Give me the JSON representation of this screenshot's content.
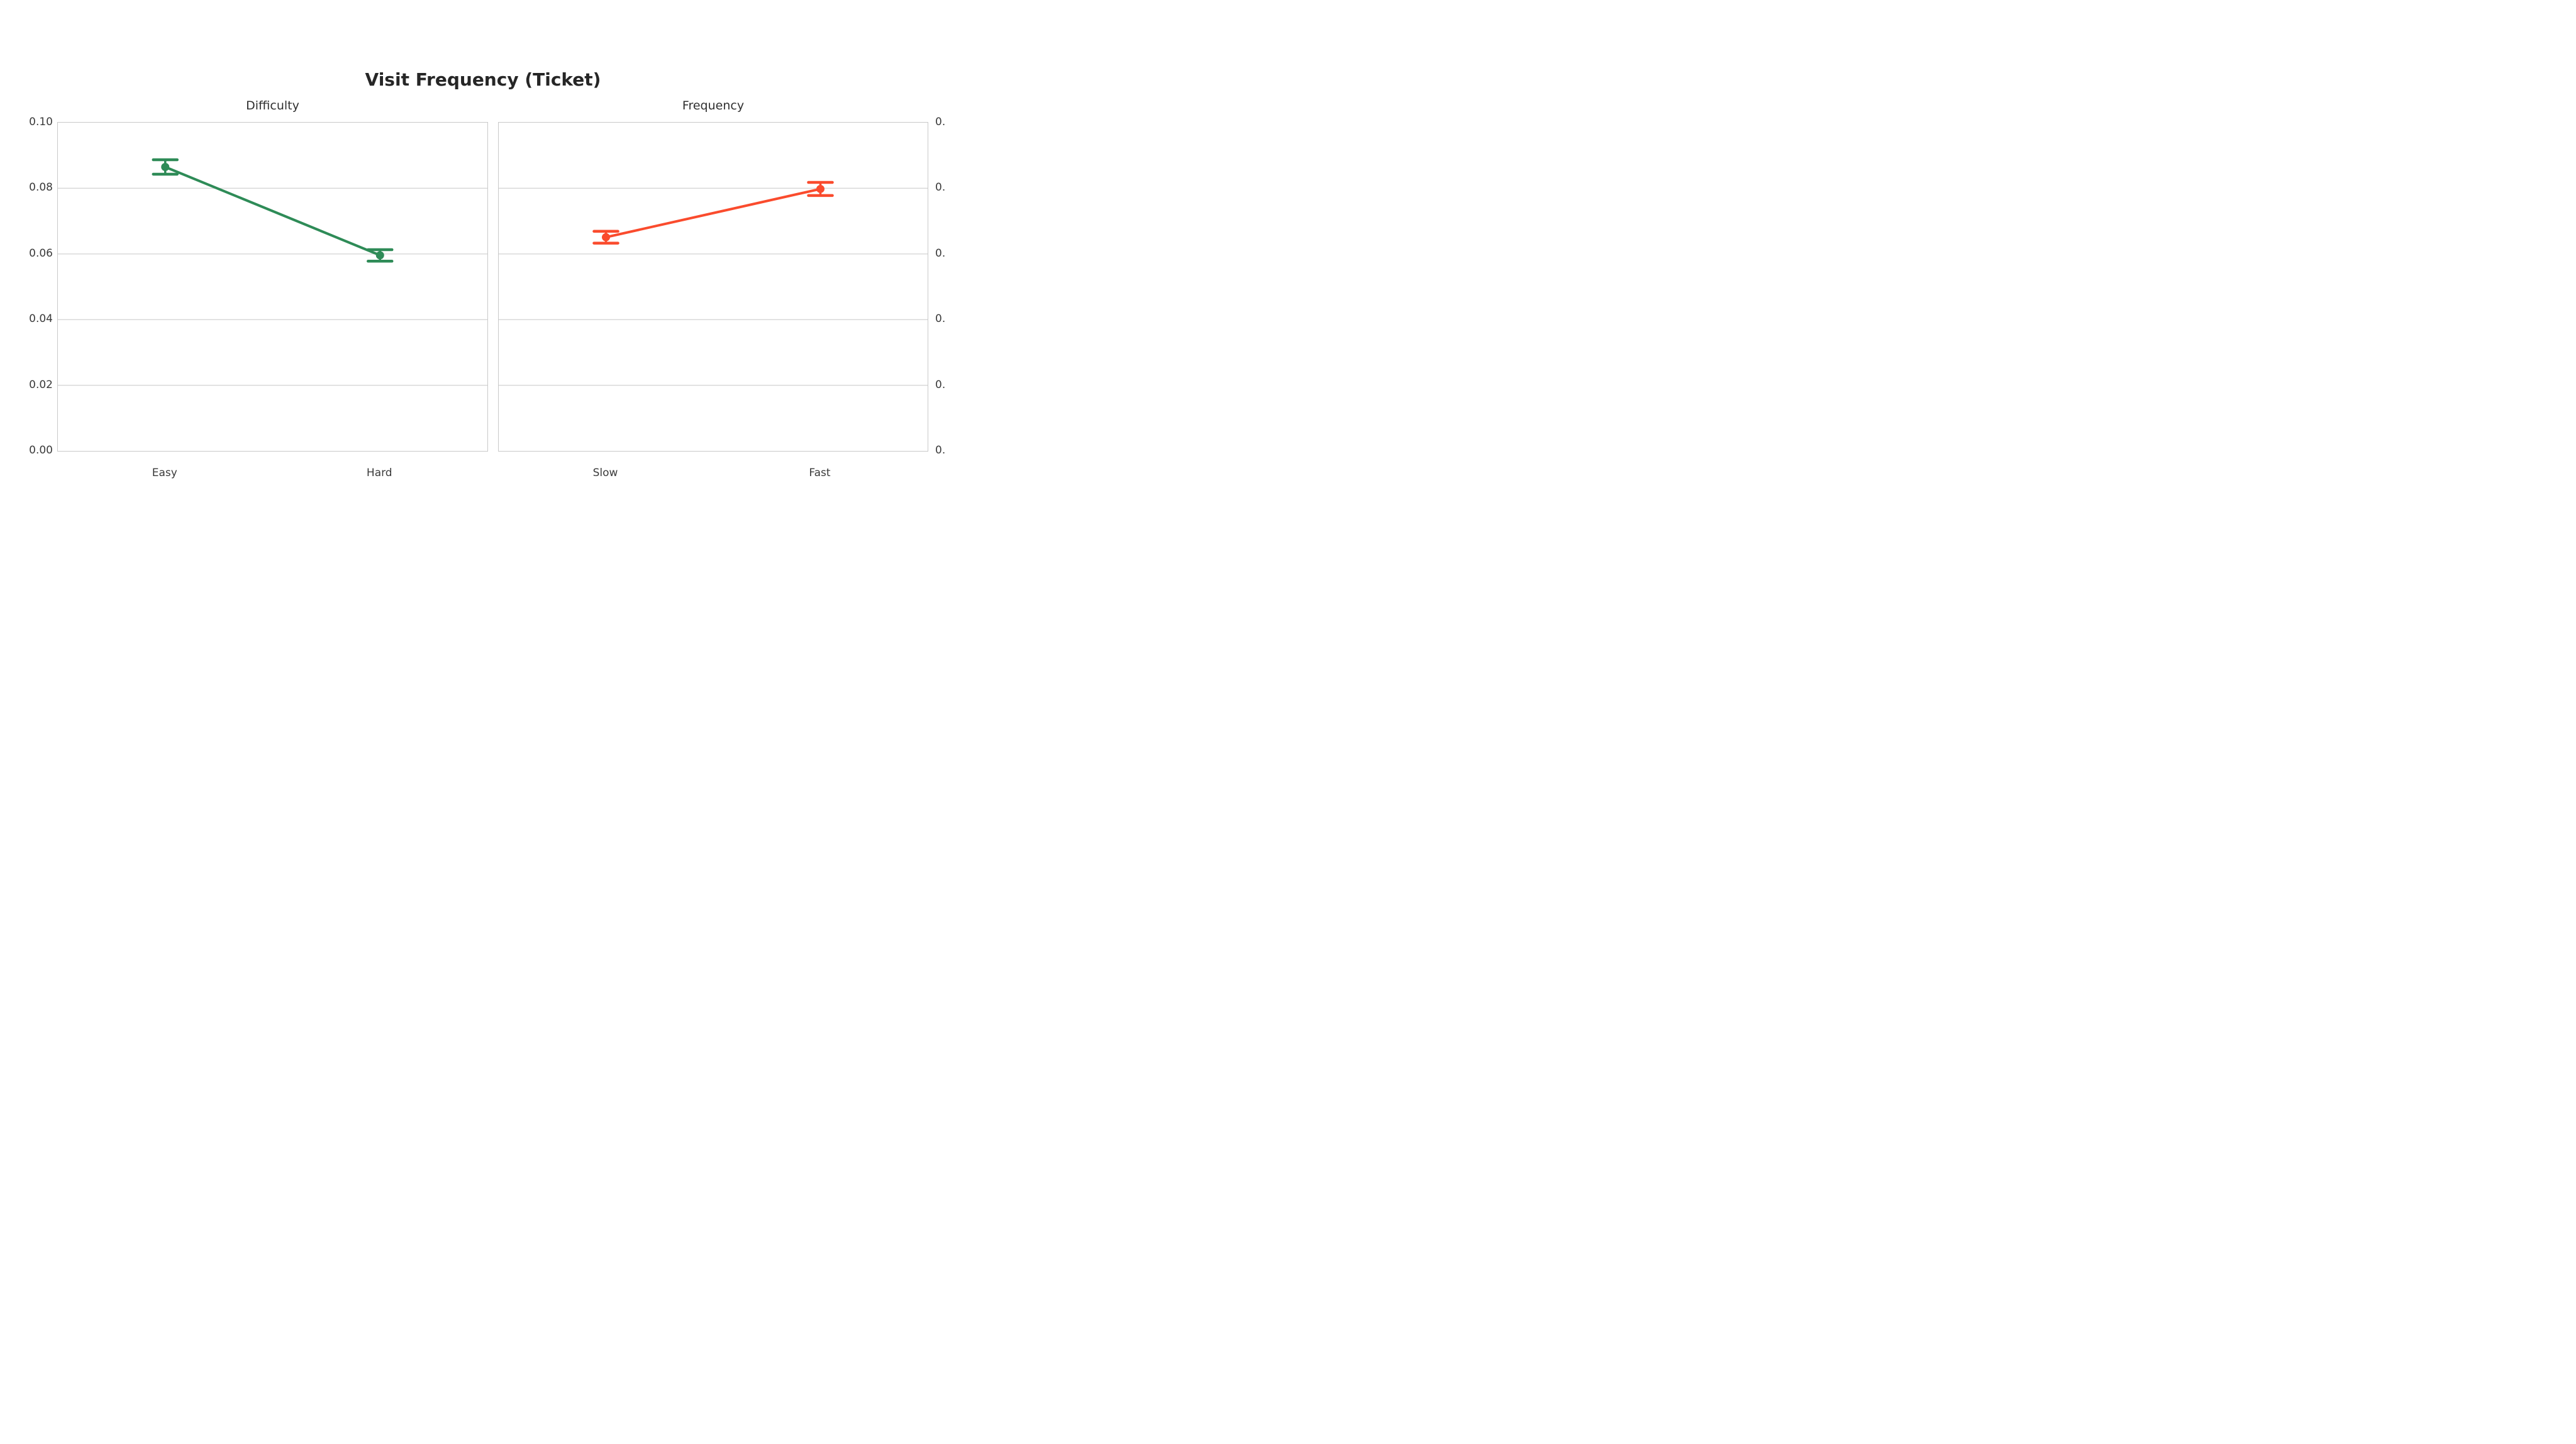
{
  "figure": {
    "title": "Visit Frequency (Ticket)",
    "background_color": "#ffffff"
  },
  "style": {
    "grid_color": "#d9d9d9",
    "spine_color": "#c9c9c9",
    "text_color": "#3a3a3a"
  },
  "chart_data": [
    {
      "type": "line",
      "title": "Difficulty",
      "categories": [
        "Easy",
        "Hard"
      ],
      "series": [
        {
          "name": "Difficulty",
          "color": "#2e8b57",
          "values": [
            0.0865,
            0.0596
          ],
          "err_low": [
            0.0843,
            0.0578
          ],
          "err_high": [
            0.0887,
            0.0613
          ]
        }
      ],
      "ylim": [
        0,
        0.1
      ],
      "yticks": [
        0,
        0.02,
        0.04,
        0.06,
        0.08,
        0.1
      ],
      "ytick_labels": [
        "0.00",
        "0.02",
        "0.04",
        "0.06",
        "0.08",
        "0.10"
      ],
      "ytick_side": "left",
      "grid": true,
      "legend": "none"
    },
    {
      "type": "line",
      "title": "Frequency",
      "categories": [
        "Slow",
        "Fast"
      ],
      "series": [
        {
          "name": "Frequency",
          "color": "#fa4b2d",
          "values": [
            0.0651,
            0.0798
          ],
          "err_low": [
            0.0633,
            0.0778
          ],
          "err_high": [
            0.0669,
            0.0818
          ]
        }
      ],
      "ylim": [
        0,
        0.1
      ],
      "yticks": [
        0,
        0.02,
        0.04,
        0.06,
        0.08,
        0.1
      ],
      "ytick_labels": [
        "0.",
        "0.",
        "0.",
        "0.",
        "0.",
        "0."
      ],
      "ytick_side": "right",
      "grid": true,
      "legend": "none"
    }
  ]
}
